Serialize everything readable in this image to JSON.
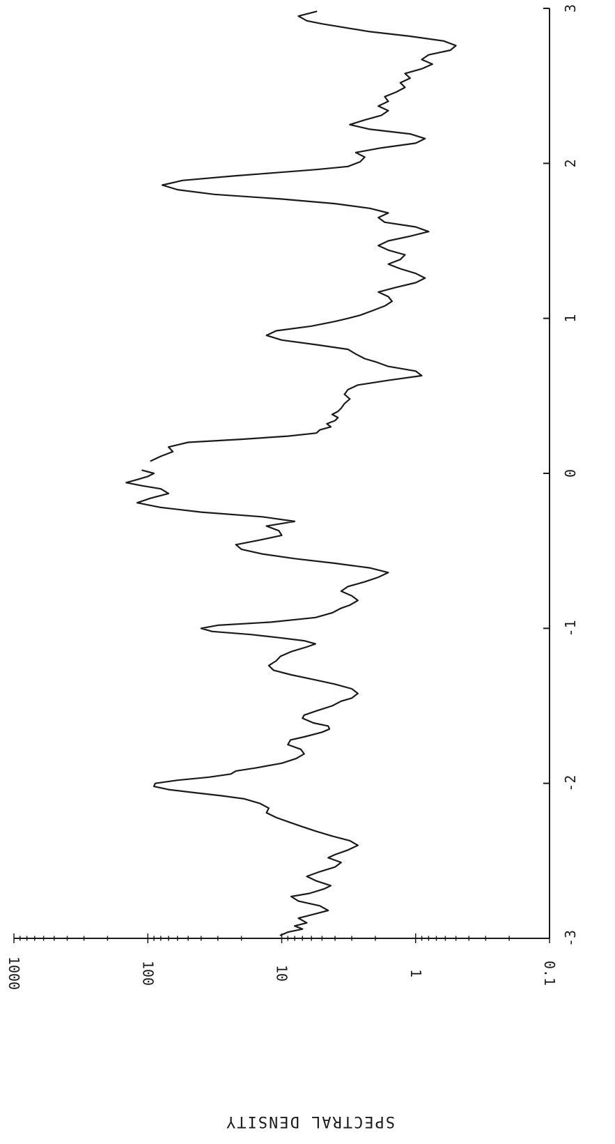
{
  "chart_data": {
    "type": "line",
    "title": "",
    "xlabel": "",
    "ylabel": "SPECTRAL DENSITY",
    "y_scale": "log",
    "xlim": [
      -3,
      3
    ],
    "ylim": [
      0.1,
      1000
    ],
    "x_ticks": [
      -3,
      -2,
      -1,
      0,
      1,
      2,
      3
    ],
    "x_tick_labels": [
      "-3",
      "-2",
      "-1",
      "0",
      "1",
      "2",
      "3"
    ],
    "y_ticks": [
      0.1,
      1,
      10,
      100,
      1000
    ],
    "y_tick_labels": [
      "0.1",
      "1",
      "10",
      "100",
      "1000"
    ],
    "grid": false,
    "legend": "none",
    "orientation": "rotated 90 degrees clockwise (x axis runs top to bottom at right edge)",
    "line_color": "#1a1a1a",
    "series": [
      {
        "x": [
          -2.98,
          -2.96,
          -2.94,
          -2.92,
          -2.9,
          -2.87,
          -2.84,
          -2.82,
          -2.79,
          -2.76,
          -2.73,
          -2.71,
          -2.68,
          -2.66,
          -2.63,
          -2.6,
          -2.57,
          -2.54,
          -2.51,
          -2.48,
          -2.46,
          -2.43,
          -2.4,
          -2.37,
          -2.34,
          -2.31,
          -2.28,
          -2.25,
          -2.22,
          -2.19,
          -2.16,
          -2.13,
          -2.1,
          -2.08,
          -2.06,
          -2.04,
          -2.02,
          -2.0,
          -1.98,
          -1.96,
          -1.94,
          -1.92,
          -1.9,
          -1.87,
          -1.84,
          -1.81,
          -1.78,
          -1.75,
          -1.72,
          -1.7,
          -1.67,
          -1.65,
          -1.63,
          -1.61,
          -1.58,
          -1.56,
          -1.53,
          -1.5,
          -1.47,
          -1.45,
          -1.42,
          -1.39,
          -1.36,
          -1.33,
          -1.3,
          -1.27,
          -1.24,
          -1.21,
          -1.18,
          -1.15,
          -1.12,
          -1.1,
          -1.08,
          -1.06,
          -1.04,
          -1.02,
          -1.0,
          -0.98,
          -0.96,
          -0.93,
          -0.9,
          -0.87,
          -0.85,
          -0.82,
          -0.79,
          -0.76,
          -0.73,
          -0.7,
          -0.67,
          -0.64,
          -0.61,
          -0.58,
          -0.55,
          -0.52,
          -0.49,
          -0.46,
          -0.43,
          -0.4,
          -0.37,
          -0.34,
          -0.31,
          -0.28,
          -0.25,
          -0.22,
          -0.19,
          -0.16,
          -0.13,
          -0.1,
          -0.08,
          -0.06,
          -0.04,
          -0.02,
          0.0,
          0.02
        ],
        "y": [
          10.2,
          9.0,
          7.0,
          8.0,
          6.5,
          7.5,
          5.5,
          4.5,
          5.2,
          7.5,
          8.5,
          6.2,
          4.8,
          4.3,
          5.5,
          6.5,
          5.2,
          4.0,
          3.6,
          4.5,
          4.0,
          3.2,
          2.7,
          3.1,
          4.2,
          5.5,
          7.0,
          8.8,
          11.0,
          13.0,
          12.5,
          14.5,
          19.0,
          28.0,
          45.0,
          70.0,
          90.0,
          88.0,
          60.0,
          35.0,
          24.0,
          22.0,
          15.5,
          10.0,
          7.8,
          6.8,
          7.2,
          9.0,
          8.6,
          6.8,
          5.0,
          4.4,
          4.5,
          5.8,
          7.0,
          6.8,
          5.4,
          4.2,
          3.6,
          3.0,
          2.7,
          3.0,
          4.0,
          5.8,
          8.5,
          11.5,
          12.5,
          11.0,
          10.2,
          8.5,
          6.5,
          5.6,
          6.8,
          10.5,
          17.0,
          33.0,
          40.0,
          30.0,
          12.0,
          5.6,
          4.2,
          3.6,
          3.1,
          2.7,
          3.0,
          3.6,
          3.2,
          2.4,
          1.9,
          1.6,
          2.2,
          4.0,
          8.0,
          14.0,
          20.0,
          22.0,
          14.5,
          10.0,
          10.5,
          13.0,
          8.0,
          14.0,
          40.0,
          80.0,
          120.0,
          95.0,
          70.0,
          80.0,
          110.0,
          145.0,
          120.0,
          100.0,
          90.0,
          110.0
        ],
        "name": ""
      },
      {
        "x": [
          0.08,
          0.11,
          0.14,
          0.17,
          0.2,
          0.22,
          0.24,
          0.26,
          0.28,
          0.3,
          0.32,
          0.34,
          0.36,
          0.38,
          0.4,
          0.42,
          0.45,
          0.48,
          0.51,
          0.54,
          0.57,
          0.6,
          0.63,
          0.66,
          0.69,
          0.72,
          0.74,
          0.77,
          0.8,
          0.83,
          0.86,
          0.89,
          0.92,
          0.95,
          0.98,
          1.0,
          1.02,
          1.05,
          1.08,
          1.11,
          1.14,
          1.17,
          1.2,
          1.23,
          1.26,
          1.29,
          1.32,
          1.35,
          1.38,
          1.41,
          1.44,
          1.47,
          1.5,
          1.53,
          1.56,
          1.59,
          1.62,
          1.65,
          1.68,
          1.71,
          1.74,
          1.77,
          1.8,
          1.83,
          1.86,
          1.89,
          1.92,
          1.94,
          1.96,
          1.98,
          2.01,
          2.04,
          2.07,
          2.1,
          2.13,
          2.16,
          2.19,
          2.22,
          2.25,
          2.28,
          2.31,
          2.34,
          2.37,
          2.4,
          2.43,
          2.46,
          2.49,
          2.52,
          2.55,
          2.58,
          2.61,
          2.64,
          2.67,
          2.7,
          2.73,
          2.76,
          2.79,
          2.82,
          2.85,
          2.88,
          2.9,
          2.92,
          2.95,
          2.98
        ],
        "y": [
          95.0,
          80.0,
          65.0,
          70.0,
          50.0,
          20.0,
          9.0,
          5.5,
          5.2,
          4.3,
          4.6,
          4.0,
          3.8,
          4.2,
          3.8,
          3.6,
          3.4,
          3.1,
          3.4,
          3.2,
          2.7,
          1.6,
          0.9,
          1.0,
          1.6,
          2.0,
          2.4,
          2.8,
          3.2,
          5.5,
          10.0,
          13.0,
          11.0,
          6.0,
          4.0,
          3.2,
          2.6,
          2.1,
          1.7,
          1.5,
          1.6,
          1.9,
          1.4,
          1.0,
          0.85,
          1.0,
          1.3,
          1.6,
          1.3,
          1.2,
          1.6,
          1.9,
          1.6,
          1.1,
          0.8,
          1.0,
          1.7,
          1.9,
          1.6,
          2.2,
          4.0,
          10.0,
          32.0,
          60.0,
          78.0,
          55.0,
          22.0,
          11.0,
          5.5,
          3.2,
          2.6,
          2.4,
          2.8,
          1.8,
          1.0,
          0.85,
          1.1,
          2.2,
          3.1,
          2.4,
          1.8,
          1.6,
          1.9,
          1.6,
          1.7,
          1.4,
          1.2,
          1.3,
          1.1,
          1.2,
          0.9,
          0.75,
          0.9,
          0.8,
          0.55,
          0.5,
          0.62,
          1.1,
          2.2,
          3.6,
          5.0,
          6.5,
          7.5,
          5.5
        ],
        "name": ""
      }
    ]
  }
}
